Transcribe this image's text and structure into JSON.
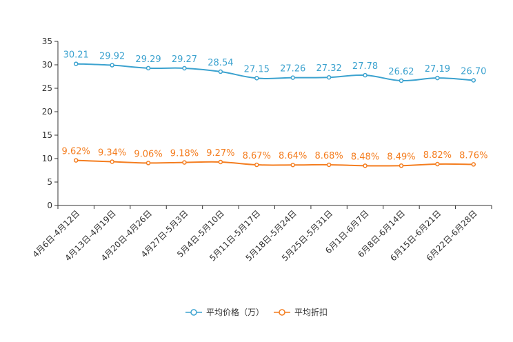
{
  "chart_data": {
    "type": "line",
    "categories": [
      "4月6日-4月12日",
      "4月13日-4月19日",
      "4月20日-4月26日",
      "4月27日-5月3日",
      "5月4日-5月10日",
      "5月11日-5月17日",
      "5月18日-5月24日",
      "5月25日-5月31日",
      "6月1日-6月7日",
      "6月8日-6月14日",
      "6月15日-6月21日",
      "6月22日-6月28日"
    ],
    "series": [
      {
        "name": "平均价格（万）",
        "color": "#3ba2cf",
        "values": [
          30.21,
          29.92,
          29.29,
          29.27,
          28.54,
          27.15,
          27.26,
          27.32,
          27.78,
          26.62,
          27.19,
          26.7
        ],
        "labels": [
          "30.21",
          "29.92",
          "29.29",
          "29.27",
          "28.54",
          "27.15",
          "27.26",
          "27.32",
          "27.78",
          "26.62",
          "27.19",
          "26.70"
        ]
      },
      {
        "name": "平均折扣",
        "color": "#f47d1f",
        "values": [
          9.62,
          9.34,
          9.06,
          9.18,
          9.27,
          8.67,
          8.64,
          8.68,
          8.48,
          8.49,
          8.82,
          8.76
        ],
        "labels": [
          "9.62%",
          "9.34%",
          "9.06%",
          "9.18%",
          "9.27%",
          "8.67%",
          "8.64%",
          "8.68%",
          "8.48%",
          "8.49%",
          "8.82%",
          "8.76%"
        ]
      }
    ],
    "yticks": [
      "0",
      "5",
      "10",
      "15",
      "20",
      "25",
      "30",
      "35"
    ],
    "ylim": [
      0,
      35
    ],
    "title": "",
    "xlabel": "",
    "ylabel": "",
    "legend_position": "bottom-center"
  }
}
